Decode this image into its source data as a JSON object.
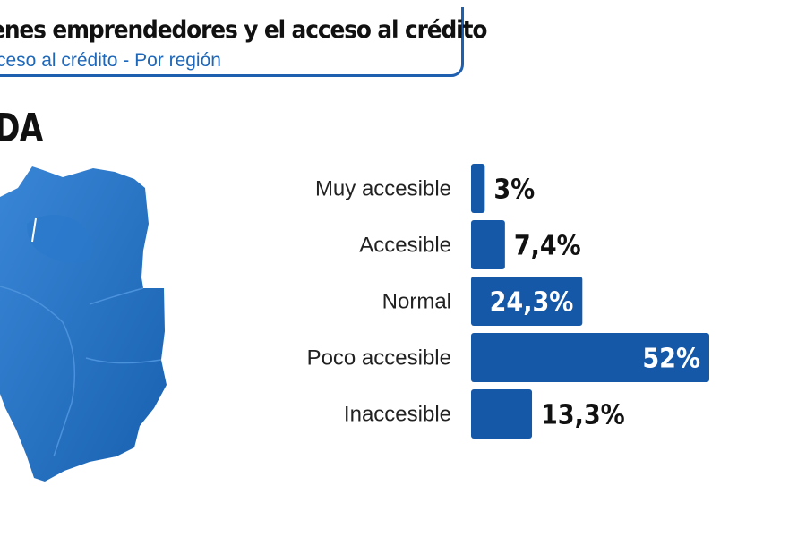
{
  "header": {
    "title": "venes emprendedores y el acceso al crédito",
    "subtitle": "ceso al crédito - Por región"
  },
  "region": {
    "name": "DA"
  },
  "colors": {
    "bar": "#1558a8",
    "map": "#1d6fc2",
    "accent": "#1f5fb0"
  },
  "chart_data": {
    "type": "bar",
    "orientation": "horizontal",
    "title": "Acceso al crédito - Por región",
    "categories": [
      "Muy accesible",
      "Accesible",
      "Normal",
      "Poco accesible",
      "Inaccesible"
    ],
    "values": [
      3,
      7.4,
      24.3,
      52,
      13.3
    ],
    "value_labels": [
      "3%",
      "7,4%",
      "24,3%",
      "52%",
      "13,3%"
    ],
    "unit": "%",
    "xlim": [
      0,
      52
    ]
  }
}
